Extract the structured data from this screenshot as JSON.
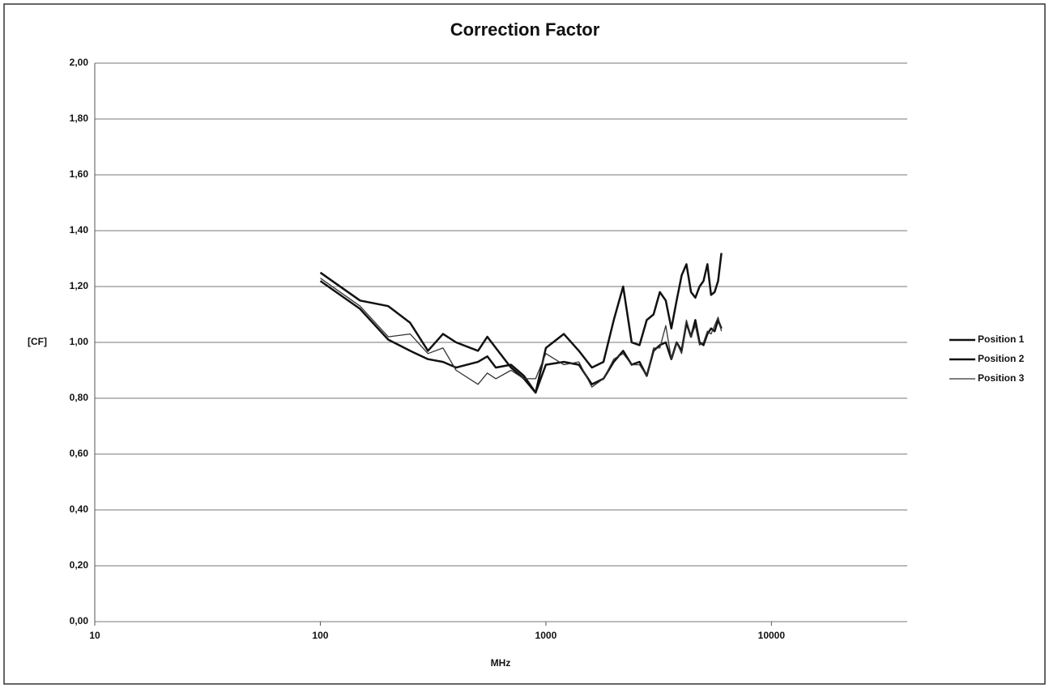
{
  "chart_data": {
    "type": "line",
    "title": "Correction Factor",
    "x_label": "MHz",
    "y_label": "[CF]",
    "x": [
      100,
      150,
      200,
      250,
      300,
      350,
      400,
      500,
      550,
      600,
      700,
      800,
      900,
      1000,
      1200,
      1400,
      1600,
      1800,
      2000,
      2200,
      2400,
      2600,
      2800,
      3000,
      3200,
      3400,
      3600,
      3800,
      4000,
      4200,
      4400,
      4600,
      4800,
      5000,
      5200,
      5400,
      5600,
      5800,
      6000
    ],
    "series": [
      {
        "name": "Position 1",
        "color": "#111111",
        "width": 2.5,
        "values": [
          1.25,
          1.15,
          1.13,
          1.07,
          0.97,
          1.03,
          1.0,
          0.97,
          1.02,
          0.98,
          0.91,
          0.87,
          0.82,
          0.98,
          1.03,
          0.97,
          0.91,
          0.93,
          1.08,
          1.2,
          1.0,
          0.99,
          1.08,
          1.1,
          1.18,
          1.15,
          1.05,
          1.15,
          1.24,
          1.28,
          1.18,
          1.16,
          1.2,
          1.22,
          1.28,
          1.17,
          1.18,
          1.22,
          1.32
        ]
      },
      {
        "name": "Position 2",
        "color": "#111111",
        "width": 2.5,
        "values": [
          1.22,
          1.12,
          1.01,
          0.97,
          0.94,
          0.93,
          0.91,
          0.93,
          0.95,
          0.91,
          0.92,
          0.88,
          0.82,
          0.92,
          0.93,
          0.92,
          0.85,
          0.87,
          0.93,
          0.97,
          0.92,
          0.93,
          0.88,
          0.97,
          0.99,
          1.0,
          0.94,
          1.0,
          0.97,
          1.07,
          1.02,
          1.08,
          1.0,
          0.99,
          1.03,
          1.05,
          1.04,
          1.08,
          1.05
        ]
      },
      {
        "name": "Position 3",
        "color": "#333333",
        "width": 1.3,
        "values": [
          1.23,
          1.13,
          1.02,
          1.03,
          0.96,
          0.98,
          0.9,
          0.85,
          0.89,
          0.87,
          0.9,
          0.87,
          0.87,
          0.96,
          0.92,
          0.93,
          0.84,
          0.87,
          0.94,
          0.96,
          0.92,
          0.92,
          0.88,
          0.98,
          0.98,
          1.06,
          0.94,
          1.0,
          0.96,
          1.08,
          1.02,
          1.06,
          0.99,
          1.0,
          1.04,
          1.03,
          1.06,
          1.09,
          1.04
        ]
      }
    ],
    "x_log": true,
    "xlim": [
      10,
      40000
    ],
    "xticks": [
      10,
      100,
      1000,
      10000
    ],
    "ylim": [
      0,
      2
    ],
    "yticks": [
      {
        "value": 0,
        "label": "0,00"
      },
      {
        "value": 0.2,
        "label": "0,20"
      },
      {
        "value": 0.4,
        "label": "0,40"
      },
      {
        "value": 0.6,
        "label": "0,60"
      },
      {
        "value": 0.8,
        "label": "0,80"
      },
      {
        "value": 1,
        "label": "1,00"
      },
      {
        "value": 1.2,
        "label": "1,20"
      },
      {
        "value": 1.4,
        "label": "1,40"
      },
      {
        "value": 1.6,
        "label": "1,60"
      },
      {
        "value": 1.8,
        "label": "1,80"
      },
      {
        "value": 2,
        "label": "2,00"
      }
    ],
    "grid": true,
    "legend": "right"
  }
}
